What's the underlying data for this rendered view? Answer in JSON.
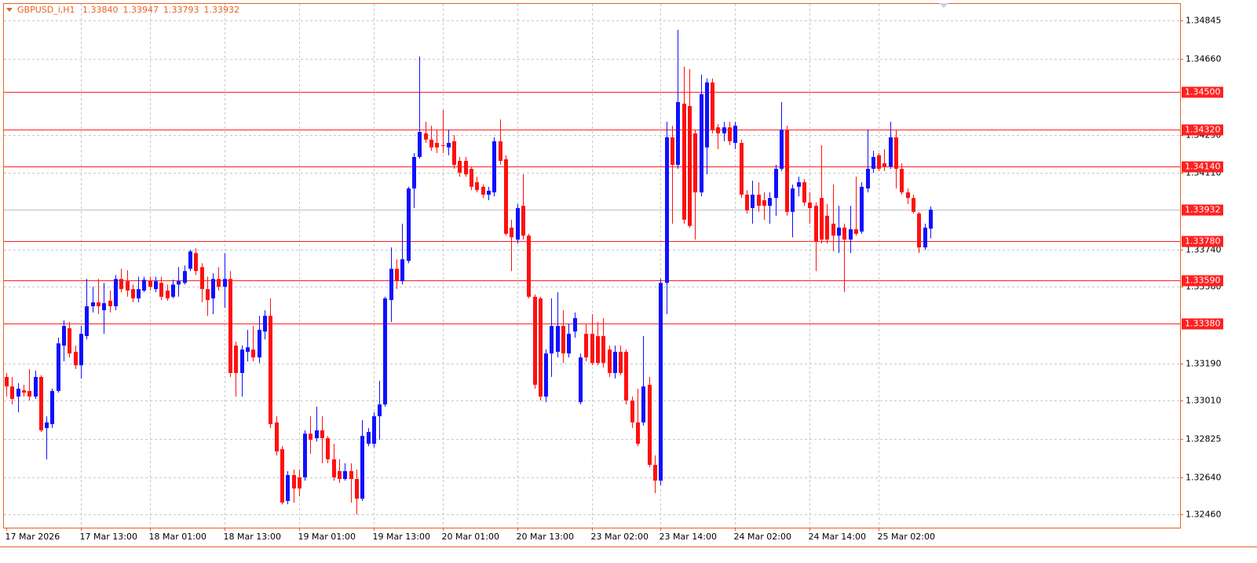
{
  "chart_data": {
    "type": "candlestick",
    "title": "GBPUSD_i,H1",
    "title_values": [
      "1.33840",
      "1.33947",
      "1.33793",
      "1.33932"
    ],
    "up_color": "#1010ff",
    "down_color": "#ff1010",
    "grid": true,
    "ylim": [
      1.32396,
      1.34925
    ],
    "yticks": [
      1.34845,
      {
        "value": 1.3466,
        "label": "1.34660"
      },
      {
        "value": 1.3429,
        "label": "1.34290"
      },
      {
        "value": 1.3411,
        "label": "1.34110"
      },
      {
        "value": 1.3374,
        "label": "1.33740"
      },
      {
        "value": 1.3356,
        "label": "1.33560"
      },
      {
        "value": 1.3319,
        "label": "1.33190"
      },
      {
        "value": 1.3301,
        "label": "1.33010"
      },
      1.32825,
      {
        "value": 1.3264,
        "label": "1.32640"
      },
      {
        "value": 1.3246,
        "label": "1.32460"
      }
    ],
    "levels": [
      1.345,
      1.3432,
      1.3414,
      1.3378,
      1.3359,
      1.3338
    ],
    "level_labels": [
      "1.34500",
      "1.34320",
      "1.34140",
      "1.33780",
      "1.33590",
      "1.33380"
    ],
    "level_color": "#ff2020",
    "current_price": 1.33932,
    "current_price_color": "#c0c0c0",
    "categories": [
      "17 Mar 2026",
      null,
      null,
      null,
      null,
      null,
      null,
      null,
      null,
      null,
      null,
      null,
      null,
      "17 Mar 13:00",
      null,
      null,
      null,
      null,
      null,
      null,
      null,
      null,
      null,
      null,
      null,
      "18 Mar 01:00",
      null,
      null,
      null,
      null,
      null,
      null,
      null,
      null,
      null,
      null,
      null,
      null,
      "18 Mar 13:00",
      null,
      null,
      null,
      null,
      null,
      null,
      null,
      null,
      null,
      null,
      null,
      null,
      "19 Mar 01:00",
      null,
      null,
      null,
      null,
      null,
      null,
      null,
      null,
      null,
      null,
      null,
      null,
      "19 Mar 13:00",
      null,
      null,
      null,
      null,
      null,
      null,
      null,
      null,
      null,
      null,
      null,
      "20 Mar 01:00",
      null,
      null,
      null,
      null,
      null,
      null,
      null,
      null,
      null,
      null,
      null,
      null,
      "20 Mar 13:00",
      null,
      null,
      null,
      null,
      null,
      null,
      null,
      null,
      null,
      null,
      null,
      null,
      "23 Mar 02:00",
      null,
      null,
      null,
      null,
      null,
      null,
      null,
      null,
      null,
      null,
      null,
      "23 Mar 14:00",
      null,
      null,
      null,
      null,
      null,
      null,
      null,
      null,
      null,
      null,
      null,
      null,
      "24 Mar 02:00",
      null,
      null,
      null,
      null,
      null,
      null,
      null,
      null,
      null,
      null,
      null,
      null,
      "24 Mar 14:00",
      null,
      null,
      null,
      null,
      null,
      null,
      null,
      null,
      null,
      null,
      null,
      "25 Mar 02:00",
      null,
      null,
      null,
      null,
      null,
      null,
      null,
      null,
      null
    ],
    "open": [
      1.33124,
      1.33078,
      1.33029,
      1.33059,
      1.33056,
      1.33029,
      1.33124,
      1.32877,
      1.32896,
      1.33056,
      1.33275,
      1.33359,
      1.33245,
      1.3318,
      1.33321,
      1.33465,
      1.33484,
      1.33446,
      1.33492,
      1.33465,
      1.33597,
      1.33586,
      1.33548,
      1.33503,
      1.33541,
      1.33589,
      1.33548,
      1.33578,
      1.33541,
      1.33511,
      1.3357,
      1.33578,
      1.33646,
      1.33722,
      1.33654,
      1.33548,
      1.33503,
      1.33597,
      1.33559,
      1.33597,
      1.33275,
      1.33143,
      1.33245,
      1.33256,
      1.33218,
      1.33343,
      1.33419,
      1.32904,
      1.32775,
      1.32525,
      1.3265,
      1.32639,
      1.32639,
      1.3285,
      1.32828,
      1.32866,
      1.32828,
      1.32726,
      1.32669,
      1.32631,
      1.32669,
      1.32631,
      1.32536,
      1.32801,
      1.32801,
      1.32934,
      1.32991,
      1.33495,
      1.33646,
      1.33586,
      1.33684,
      1.34034,
      1.34186,
      1.343,
      1.3427,
      1.34254,
      1.34243,
      1.34232,
      1.34262,
      1.34167,
      1.34167,
      1.34129,
      1.34064,
      1.34042,
      1.34004,
      1.34015,
      1.34262,
      1.34175,
      1.33845,
      1.33787,
      1.3395,
      1.33806,
      1.33511,
      1.33503,
      1.33029,
      1.33237,
      1.33245,
      1.3337,
      1.33237,
      1.33343,
      1.33002,
      1.33332,
      1.33332,
      1.33321,
      1.33321,
      1.33256,
      1.33143,
      1.33245,
      1.33245,
      1.3301,
      1.32904,
      1.32904,
      1.33086,
      1.32699,
      1.32623,
      1.33578,
      1.34281,
      1.34148,
      1.34443,
      1.34432,
      1.343,
      1.34015,
      1.34232,
      1.34546,
      1.34329,
      1.343,
      1.34329,
      1.34254,
      1.34254,
      1.34004,
      1.33939,
      1.34004,
      1.33977,
      1.3395,
      1.33988,
      1.34129,
      1.34318,
      1.33921,
      1.34042,
      1.34064,
      1.33966,
      1.3395,
      1.33988,
      1.33902,
      1.33864,
      1.33806,
      1.33845,
      1.33787,
      1.33837,
      1.33826,
      1.34034,
      1.34129,
      1.34194,
      1.34156,
      1.3414,
      1.34281,
      1.34129,
      1.34015,
      1.33988,
      1.33913,
      1.33749,
      1.3384
    ],
    "high": [
      1.33143,
      1.33124,
      1.33094,
      1.33086,
      1.33162,
      1.33154,
      1.33132,
      1.32934,
      1.33067,
      1.33313,
      1.33397,
      1.33389,
      1.33275,
      1.3337,
      1.33597,
      1.33559,
      1.33597,
      1.33578,
      1.33541,
      1.33616,
      1.33646,
      1.33639,
      1.3357,
      1.33608,
      1.33608,
      1.33608,
      1.33608,
      1.33608,
      1.3357,
      1.33593,
      1.33654,
      1.33662,
      1.33738,
      1.33745,
      1.33673,
      1.33608,
      1.33624,
      1.33654,
      1.33722,
      1.33635,
      1.33294,
      1.33275,
      1.33351,
      1.3337,
      1.33419,
      1.33446,
      1.33503,
      1.32934,
      1.3279,
      1.32669,
      1.32677,
      1.32677,
      1.32866,
      1.32934,
      1.3298,
      1.32934,
      1.32839,
      1.32801,
      1.32726,
      1.32707,
      1.32707,
      1.32677,
      1.32915,
      1.32877,
      1.32953,
      1.33105,
      1.33511,
      1.33749,
      1.33692,
      1.33864,
      1.34042,
      1.34205,
      1.34671,
      1.34356,
      1.34337,
      1.34318,
      1.34413,
      1.34318,
      1.34292,
      1.34186,
      1.34186,
      1.3414,
      1.34091,
      1.34053,
      1.34042,
      1.34281,
      1.34367,
      1.34194,
      1.33883,
      1.33958,
      1.34102,
      1.33815,
      1.33522,
      1.33511,
      1.33256,
      1.33503,
      1.33533,
      1.33446,
      1.33381,
      1.33435,
      1.33237,
      1.33381,
      1.33427,
      1.33389,
      1.33408,
      1.33275,
      1.33275,
      1.33275,
      1.33256,
      1.33029,
      1.33067,
      1.33321,
      1.33124,
      1.32745,
      1.33597,
      1.34356,
      1.34337,
      1.348,
      1.34622,
      1.34611,
      1.34318,
      1.34584,
      1.34565,
      1.34565,
      1.34345,
      1.34356,
      1.34356,
      1.34356,
      1.3427,
      1.34026,
      1.34072,
      1.34064,
      1.34015,
      1.34015,
      1.34148,
      1.34451,
      1.34337,
      1.34053,
      1.34091,
      1.3408,
      1.34015,
      1.33966,
      1.34243,
      1.33958,
      1.34053,
      1.3395,
      1.33864,
      1.3395,
      1.34091,
      1.34064,
      1.34318,
      1.34216,
      1.34205,
      1.34224,
      1.34356,
      1.34318,
      1.34156,
      1.34034,
      1.34004,
      1.33921,
      1.33864,
      1.33947
    ],
    "low": [
      1.33029,
      1.32991,
      1.32953,
      1.33029,
      1.3301,
      1.33018,
      1.32858,
      1.32726,
      1.32877,
      1.33048,
      1.33199,
      1.33218,
      1.33162,
      1.33116,
      1.33305,
      1.33435,
      1.33427,
      1.33332,
      1.33435,
      1.33446,
      1.33533,
      1.33511,
      1.33484,
      1.33484,
      1.33533,
      1.33541,
      1.33533,
      1.33495,
      1.33492,
      1.33503,
      1.33511,
      1.3357,
      1.33635,
      1.33616,
      1.33484,
      1.33419,
      1.33427,
      1.33541,
      1.33457,
      1.33124,
      1.33029,
      1.33029,
      1.33199,
      1.33199,
      1.33191,
      1.33305,
      1.32877,
      1.32745,
      1.32509,
      1.32509,
      1.32517,
      1.32547,
      1.32623,
      1.32753,
      1.32812,
      1.32707,
      1.32707,
      1.32623,
      1.32612,
      1.32623,
      1.32517,
      1.3246,
      1.32525,
      1.3279,
      1.32783,
      1.3282,
      1.3298,
      1.33389,
      1.33548,
      1.3357,
      1.33673,
      1.33939,
      1.34178,
      1.34254,
      1.34216,
      1.34205,
      1.34205,
      1.34194,
      1.34129,
      1.34091,
      1.34091,
      1.34026,
      1.34015,
      1.33988,
      1.33977,
      1.33996,
      1.34148,
      1.33806,
      1.33635,
      1.33768,
      1.33787,
      1.33503,
      1.33067,
      1.3301,
      1.33002,
      1.33124,
      1.33218,
      1.33191,
      1.33218,
      1.33313,
      1.32991,
      1.33199,
      1.3318,
      1.3318,
      1.33169,
      1.33124,
      1.33116,
      1.33132,
      1.32991,
      1.32877,
      1.3279,
      1.32888,
      1.32688,
      1.32563,
      1.32601,
      1.33427,
      1.33864,
      1.34129,
      1.33864,
      1.33845,
      1.33787,
      1.33996,
      1.34102,
      1.343,
      1.34224,
      1.34262,
      1.34243,
      1.34224,
      1.33988,
      1.33913,
      1.33864,
      1.33921,
      1.33883,
      1.33864,
      1.33902,
      1.34118,
      1.33902,
      1.33798,
      1.33996,
      1.3395,
      1.33864,
      1.33635,
      1.33768,
      1.33768,
      1.3373,
      1.33722,
      1.33533,
      1.33722,
      1.33806,
      1.33815,
      1.34015,
      1.3411,
      1.34118,
      1.34118,
      1.34129,
      1.34034,
      1.34004,
      1.33958,
      1.33913,
      1.33722,
      1.33738,
      1.33793
    ],
    "close": [
      1.33078,
      1.33018,
      1.33067,
      1.33048,
      1.33029,
      1.33124,
      1.32866,
      1.32904,
      1.33056,
      1.33286,
      1.3337,
      1.33237,
      1.3318,
      1.33332,
      1.33465,
      1.33484,
      1.33465,
      1.3348,
      1.33465,
      1.33597,
      1.33548,
      1.33541,
      1.33503,
      1.33548,
      1.33593,
      1.33559,
      1.33586,
      1.33511,
      1.33503,
      1.3357,
      1.33586,
      1.33635,
      1.3373,
      1.33635,
      1.33548,
      1.33495,
      1.33597,
      1.33559,
      1.33597,
      1.33143,
      1.33143,
      1.33256,
      1.33267,
      1.33218,
      1.33351,
      1.33419,
      1.32896,
      1.32764,
      1.32517,
      1.3265,
      1.32585,
      1.32585,
      1.3285,
      1.3282,
      1.32866,
      1.32828,
      1.32726,
      1.32639,
      1.32631,
      1.32669,
      1.32631,
      1.32536,
      1.32839,
      1.32858,
      1.32934,
      1.32991,
      1.33503,
      1.33646,
      1.33586,
      1.33692,
      1.34034,
      1.34186,
      1.34307,
      1.3427,
      1.34232,
      1.34232,
      1.34239,
      1.34254,
      1.34148,
      1.3411,
      1.34102,
      1.34042,
      1.34026,
      1.34004,
      1.34023,
      1.34262,
      1.34167,
      1.33815,
      1.33798,
      1.33939,
      1.33806,
      1.33511,
      1.33086,
      1.33029,
      1.33237,
      1.3337,
      1.3337,
      1.33237,
      1.33332,
      1.33408,
      1.33218,
      1.33218,
      1.33191,
      1.33191,
      1.33191,
      1.33143,
      1.33245,
      1.33143,
      1.3301,
      1.32904,
      1.32801,
      1.33078,
      1.32699,
      1.32623,
      1.33578,
      1.34281,
      1.34148,
      1.34451,
      1.33883,
      1.33853,
      1.34015,
      1.34489,
      1.34546,
      1.34318,
      1.343,
      1.34329,
      1.34262,
      1.34337,
      1.34004,
      1.33928,
      1.34004,
      1.3395,
      1.3395,
      1.33988,
      1.34129,
      1.34318,
      1.33921,
      1.34034,
      1.34064,
      1.33966,
      1.33939,
      1.33776,
      1.33787,
      1.33787,
      1.33806,
      1.33845,
      1.33787,
      1.33837,
      1.33815,
      1.34042,
      1.34129,
      1.34186,
      1.34129,
      1.3414,
      1.34281,
      1.34129,
      1.34015,
      1.33988,
      1.33921,
      1.33749,
      1.33845,
      1.33932
    ]
  }
}
